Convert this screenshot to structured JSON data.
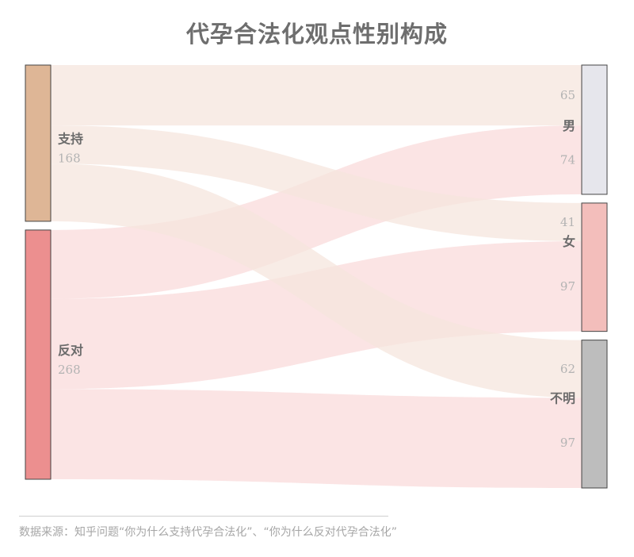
{
  "title": "代孕合法化观点性别构成",
  "source": "数据来源：知乎问题“你为什么支持代孕合法化”、“你为什么反对代孕合法化”",
  "colors": {
    "support_node": "#deb696",
    "oppose_node": "#ec8f8f",
    "male_node": "#e6e6ec",
    "female_node": "#f3bebb",
    "unknown_node": "#bdbdbd",
    "support_link": "#f5e6dd",
    "oppose_link": "#f9dbdb"
  },
  "chart_data": {
    "type": "sankey",
    "title": "代孕合法化观点性别构成",
    "sources": [
      {
        "id": "support",
        "label": "支持",
        "value": 168
      },
      {
        "id": "oppose",
        "label": "反对",
        "value": 268
      }
    ],
    "targets": [
      {
        "id": "male",
        "label": "男",
        "value": 139
      },
      {
        "id": "female",
        "label": "女",
        "value": 138
      },
      {
        "id": "unknown",
        "label": "不明",
        "value": 159
      }
    ],
    "links": [
      {
        "source": "support",
        "target": "male",
        "value": 65
      },
      {
        "source": "oppose",
        "target": "male",
        "value": 74
      },
      {
        "source": "support",
        "target": "female",
        "value": 41
      },
      {
        "source": "oppose",
        "target": "female",
        "value": 97
      },
      {
        "source": "support",
        "target": "unknown",
        "value": 62
      },
      {
        "source": "oppose",
        "target": "unknown",
        "value": 97
      }
    ]
  }
}
